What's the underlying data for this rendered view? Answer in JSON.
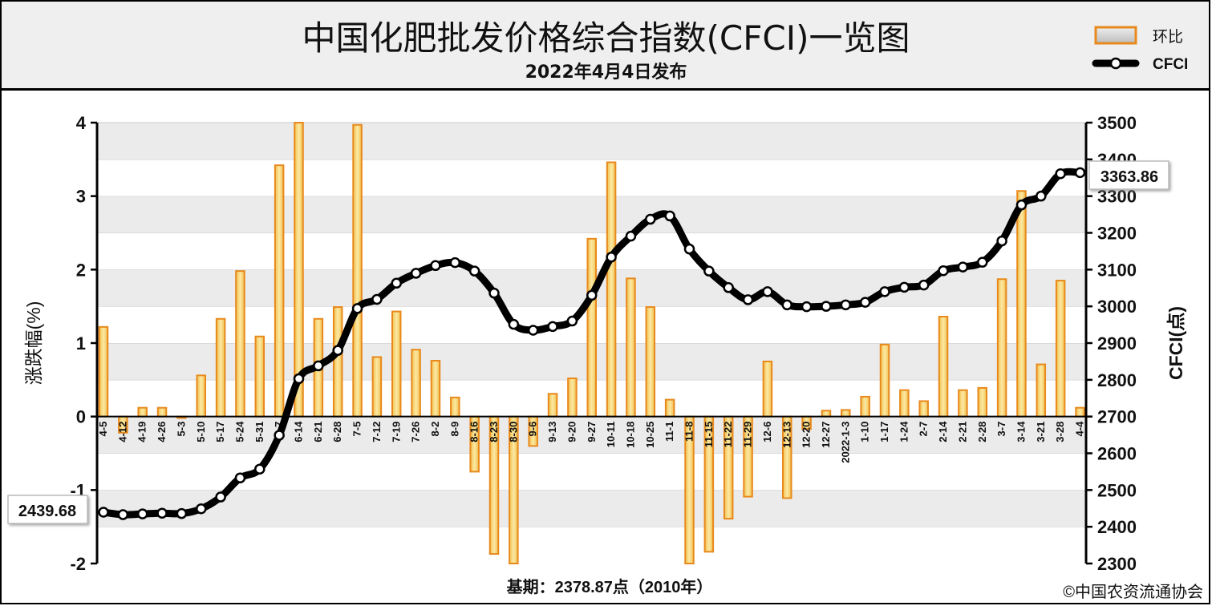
{
  "title": "中国化肥批发价格综合指数(CFCI)一览图",
  "subtitle": "2022年4月4日发布",
  "legend": {
    "bar_label": "环比",
    "line_label": "CFCI"
  },
  "base_note": "基期：2378.87点（2010年）",
  "copyright": "©中国农资流通协会",
  "colors": {
    "bar_fill": "#f7dd7a",
    "bar_stroke": "#e8891c",
    "line": "#000000",
    "marker_fill": "#ffffff",
    "grid_band": "#ebebeb",
    "header_bg": "#efefef"
  },
  "chart_data": {
    "type": "bar+line",
    "categories": [
      "4-5",
      "4-12",
      "4-19",
      "4-26",
      "5-3",
      "5-10",
      "5-17",
      "5-24",
      "5-31",
      "6-7",
      "6-14",
      "6-21",
      "6-28",
      "7-5",
      "7-12",
      "7-19",
      "7-26",
      "8-2",
      "8-9",
      "8-16",
      "8-23",
      "8-30",
      "9-6",
      "9-13",
      "9-20",
      "9-27",
      "10-11",
      "10-18",
      "10-25",
      "11-1",
      "11-8",
      "11-15",
      "11-22",
      "11-29",
      "12-6",
      "12-13",
      "12-20",
      "12-27",
      "2022-1-3",
      "1-10",
      "1-17",
      "1-24",
      "2-7",
      "2-14",
      "2-21",
      "2-28",
      "3-7",
      "3-14",
      "3-21",
      "3-28",
      "4-4"
    ],
    "series": [
      {
        "name": "环比",
        "axis": "left",
        "type": "bar",
        "values": [
          1.22,
          -0.22,
          0.12,
          0.12,
          -0.02,
          0.56,
          1.33,
          1.98,
          1.09,
          3.42,
          4.0,
          1.33,
          1.49,
          3.97,
          0.81,
          1.43,
          0.91,
          0.76,
          0.26,
          -0.75,
          -1.87,
          -2.0,
          -0.4,
          0.31,
          0.52,
          2.42,
          3.46,
          1.88,
          1.49,
          0.23,
          -2.0,
          -1.84,
          -1.39,
          -1.09,
          0.75,
          -1.11,
          -0.17,
          0.08,
          0.09,
          0.27,
          0.98,
          0.36,
          0.21,
          1.36,
          0.36,
          0.39,
          1.87,
          3.07,
          0.71,
          1.85,
          0.12
        ]
      },
      {
        "name": "CFCI",
        "axis": "right",
        "type": "line",
        "values": [
          2439.68,
          2433,
          2435,
          2437,
          2436,
          2449,
          2481,
          2533,
          2557,
          2649,
          2803,
          2838,
          2880,
          2994,
          3019,
          3063,
          3090,
          3111,
          3119,
          3096,
          3036,
          2951,
          2935,
          2945,
          2960,
          3030,
          3134,
          3191,
          3237,
          3246,
          3156,
          3096,
          3051,
          3018,
          3040,
          3004,
          2999,
          3000,
          3004,
          3011,
          3040,
          3052,
          3058,
          3097,
          3107,
          3120,
          3178,
          3276,
          3300,
          3361,
          3363.86
        ]
      }
    ],
    "y_left": {
      "label": "涨跌幅(%)",
      "min": -2,
      "max": 4,
      "ticks": [
        -2,
        -1,
        0,
        1,
        2,
        3,
        4
      ]
    },
    "y_right": {
      "label": "CFCI(点)",
      "min": 2300,
      "max": 3500,
      "ticks": [
        2300,
        2400,
        2500,
        2600,
        2700,
        2800,
        2900,
        3000,
        3100,
        3200,
        3300,
        3400,
        3500
      ]
    },
    "annotations": {
      "start_label": "2439.68",
      "end_label": "3363.86"
    },
    "grid": "horizontal bands",
    "legend_position": "top-right"
  }
}
